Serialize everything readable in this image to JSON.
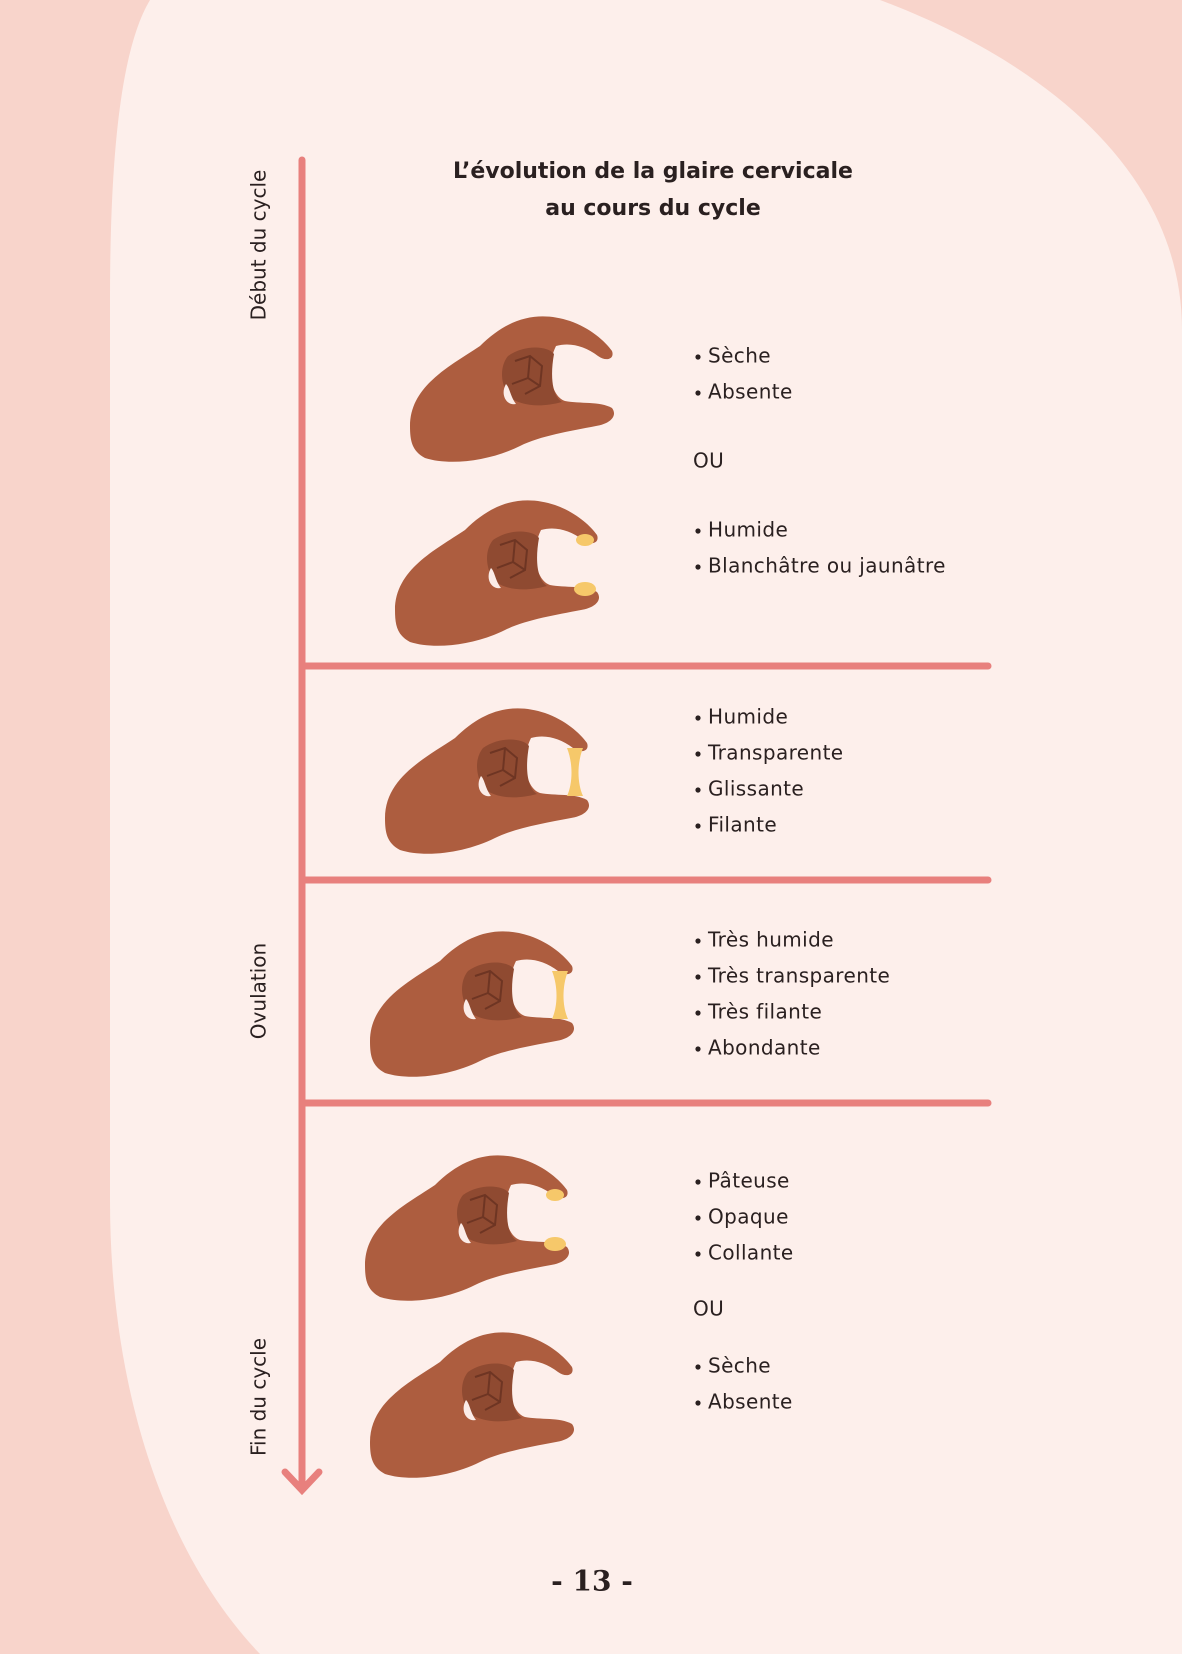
{
  "title": [
    "L’évolution de la glaire cervicale",
    "au cours du cycle"
  ],
  "axis_labels": {
    "start": "Début du cycle",
    "middle": "Ovulation",
    "end": "Fin du cycle"
  },
  "sections": [
    {
      "options": [
        [
          "Sèche",
          "Absente"
        ],
        [
          "Humide",
          "Blanchâtre ou jaunâtre"
        ]
      ],
      "separator": "OU"
    },
    {
      "options": [
        [
          "Humide",
          "Transparente",
          "Glissante",
          "Filante"
        ]
      ]
    },
    {
      "options": [
        [
          "Très humide",
          "Très transparente",
          "Très filante",
          "Abondante"
        ]
      ]
    },
    {
      "options": [
        [
          "Pâteuse",
          "Opaque",
          "Collante"
        ],
        [
          "Sèche",
          "Absente"
        ]
      ],
      "separator": "OU"
    }
  ],
  "page_number": "- 13 -"
}
